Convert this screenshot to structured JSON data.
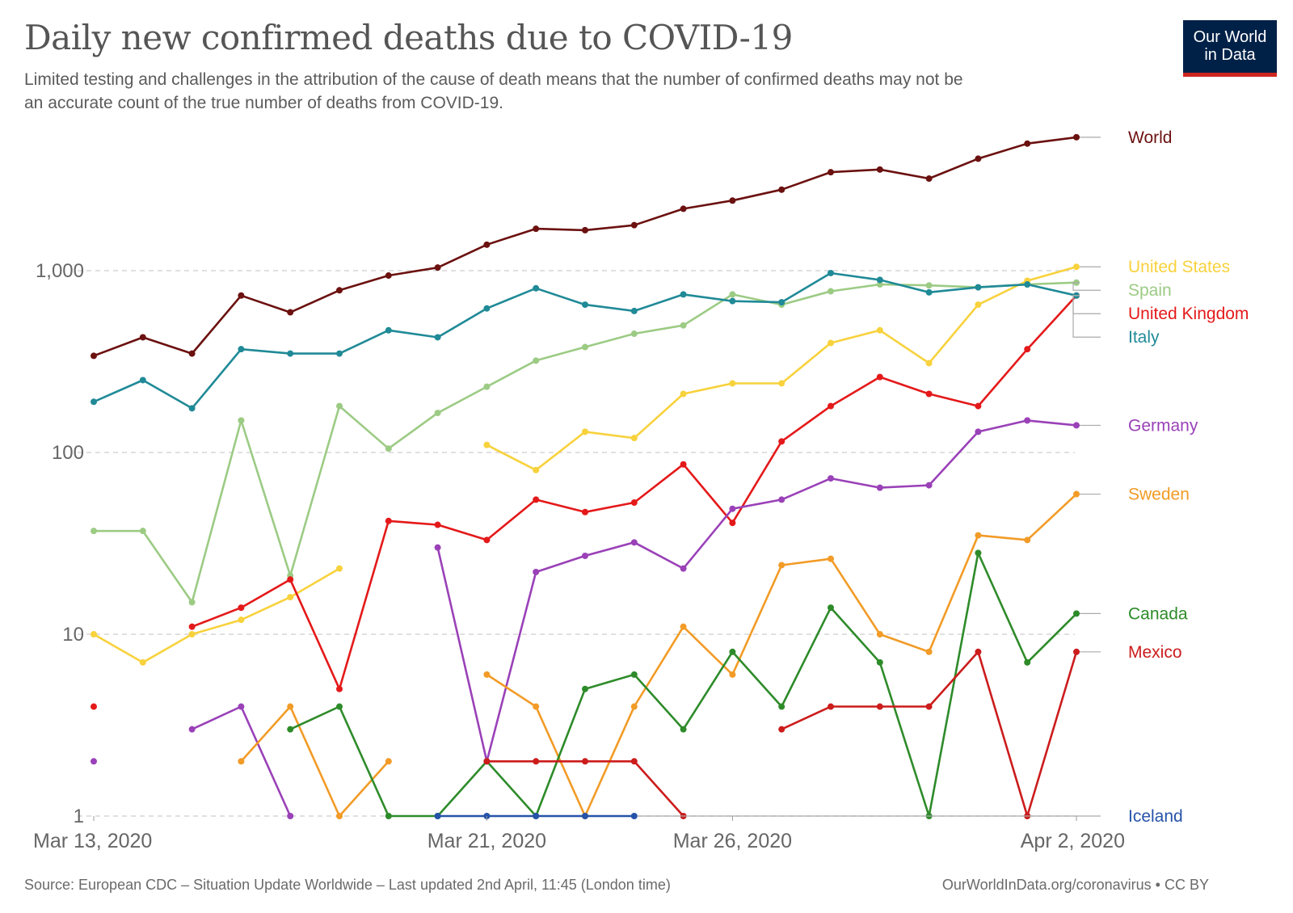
{
  "header": {
    "title": "Daily new confirmed deaths due to COVID-19",
    "subtitle": "Limited testing and challenges in the attribution of the cause of death means that the number of confirmed deaths may not be an accurate count of the true number of deaths from COVID-19.",
    "logo_line1": "Our World",
    "logo_line2": "in Data"
  },
  "footer": {
    "source": "Source: European CDC – Situation Update Worldwide – Last updated 2nd April, 11:45 (London time)",
    "license": "OurWorldInData.org/coronavirus • CC BY"
  },
  "colors": {
    "logo_background": "#002147",
    "logo_accent": "#ce261e"
  },
  "chart_data": {
    "type": "line",
    "y_scale": "log",
    "ylim": [
      1,
      5000
    ],
    "y_ticks": [
      {
        "value": 1,
        "label": "1"
      },
      {
        "value": 10,
        "label": "10"
      },
      {
        "value": 100,
        "label": "100"
      },
      {
        "value": 1000,
        "label": "1,000"
      }
    ],
    "x": [
      "2020-03-13",
      "2020-03-14",
      "2020-03-15",
      "2020-03-16",
      "2020-03-17",
      "2020-03-18",
      "2020-03-19",
      "2020-03-20",
      "2020-03-21",
      "2020-03-22",
      "2020-03-23",
      "2020-03-24",
      "2020-03-25",
      "2020-03-26",
      "2020-03-27",
      "2020-03-28",
      "2020-03-29",
      "2020-03-30",
      "2020-03-31",
      "2020-04-01",
      "2020-04-02"
    ],
    "x_ticks": [
      {
        "date": "2020-03-13",
        "label": "Mar 13, 2020"
      },
      {
        "date": "2020-03-21",
        "label": "Mar 21, 2020"
      },
      {
        "date": "2020-03-26",
        "label": "Mar 26, 2020"
      },
      {
        "date": "2020-04-02",
        "label": "Apr 2, 2020"
      }
    ],
    "grid": "horizontal dashed",
    "legend": "line labels at right end",
    "series": [
      {
        "name": "World",
        "color": "#6b1110",
        "values": [
          340,
          430,
          350,
          730,
          590,
          780,
          940,
          1040,
          1390,
          1700,
          1670,
          1780,
          2190,
          2430,
          2790,
          3480,
          3600,
          3210,
          4130,
          5000,
          5420
        ]
      },
      {
        "name": "United States",
        "color": "#f8d23c",
        "values": [
          10,
          7,
          10,
          12,
          16,
          23,
          null,
          null,
          110,
          80,
          130,
          120,
          210,
          240,
          240,
          400,
          470,
          310,
          650,
          880,
          1050
        ]
      },
      {
        "name": "Spain",
        "color": "#9ccb84",
        "values": [
          37,
          37,
          15,
          150,
          21,
          180,
          105,
          165,
          230,
          320,
          380,
          450,
          500,
          740,
          650,
          770,
          840,
          830,
          810,
          840,
          860
        ]
      },
      {
        "name": "United Kingdom",
        "color": "#e4191a",
        "values": [
          4,
          null,
          11,
          14,
          20,
          5,
          42,
          40,
          33,
          55,
          47,
          53,
          86,
          41,
          115,
          180,
          260,
          210,
          180,
          370,
          730
        ]
      },
      {
        "name": "Italy",
        "color": "#208a97",
        "values": [
          190,
          250,
          175,
          370,
          350,
          350,
          470,
          430,
          620,
          800,
          650,
          600,
          740,
          680,
          670,
          970,
          890,
          760,
          810,
          840,
          730
        ]
      },
      {
        "name": "Germany",
        "color": "#9a41b8",
        "values": [
          2,
          null,
          3,
          4,
          1,
          null,
          null,
          30,
          2,
          22,
          27,
          32,
          23,
          49,
          55,
          72,
          64,
          66,
          130,
          150,
          141
        ]
      },
      {
        "name": "Sweden",
        "color": "#f29b26",
        "values": [
          null,
          null,
          null,
          2,
          4,
          1,
          2,
          null,
          6,
          4,
          1,
          4,
          11,
          6,
          24,
          26,
          10,
          8,
          35,
          33,
          59
        ]
      },
      {
        "name": "Canada",
        "color": "#2e8b2a",
        "values": [
          null,
          null,
          null,
          null,
          3,
          4,
          1,
          1,
          2,
          1,
          5,
          6,
          3,
          8,
          4,
          14,
          7,
          1,
          28,
          7,
          13
        ]
      },
      {
        "name": "Mexico",
        "color": "#cc1c1c",
        "values": [
          null,
          null,
          null,
          null,
          null,
          null,
          null,
          null,
          2,
          2,
          2,
          2,
          1,
          null,
          3,
          4,
          4,
          4,
          8,
          1,
          8
        ]
      },
      {
        "name": "Iceland",
        "color": "#2653a9",
        "values": [
          null,
          null,
          null,
          null,
          null,
          null,
          null,
          1,
          1,
          1,
          1,
          1,
          null,
          null,
          null,
          null,
          null,
          null,
          null,
          null,
          null
        ]
      }
    ]
  }
}
